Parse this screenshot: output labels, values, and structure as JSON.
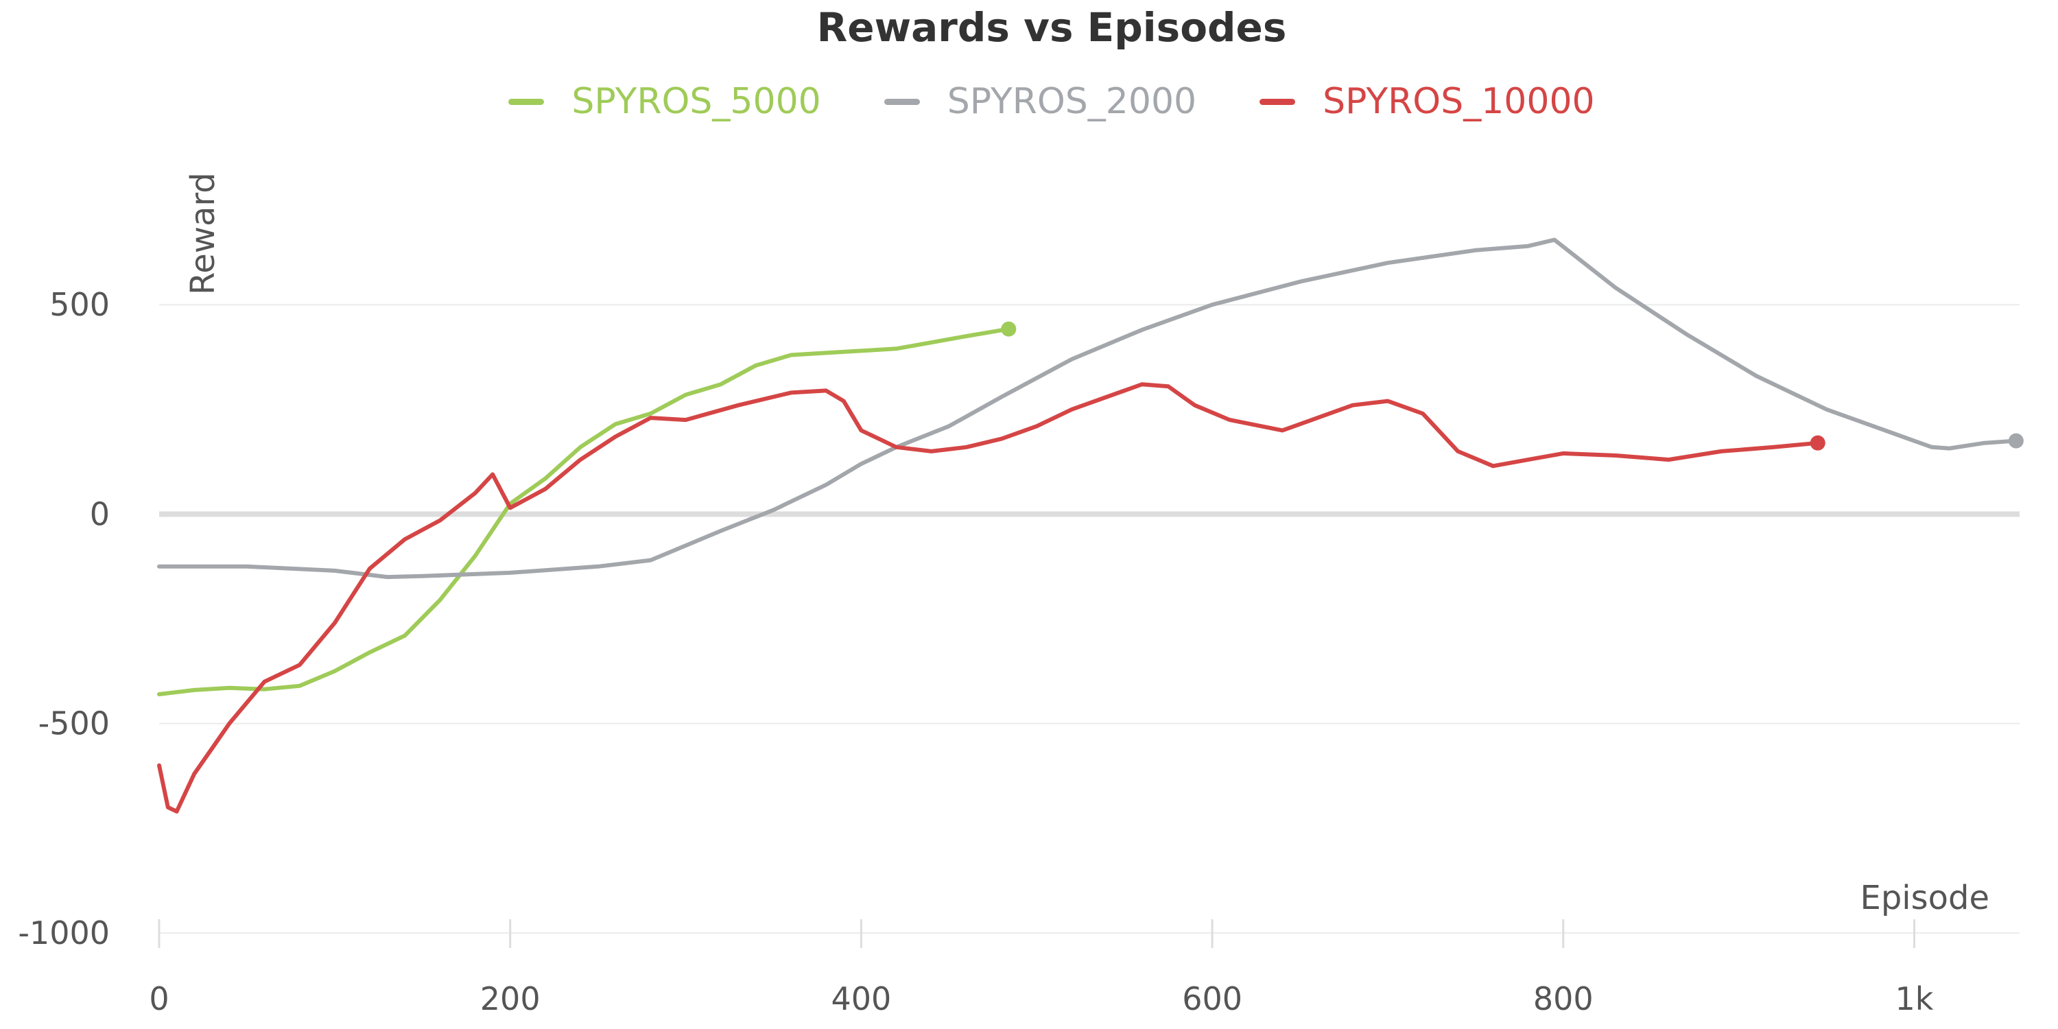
{
  "chart_data": {
    "type": "line",
    "title": "Rewards vs Episodes",
    "xlabel": "Episode",
    "ylabel": "Reward",
    "xlim": [
      0,
      1060
    ],
    "ylim": [
      -1000,
      900
    ],
    "x_ticks": [
      0,
      200,
      400,
      600,
      800,
      1000
    ],
    "x_tick_labels": [
      "0",
      "200",
      "400",
      "600",
      "800",
      "1k"
    ],
    "y_ticks": [
      -1000,
      -500,
      0,
      500
    ],
    "y_tick_labels": [
      "-1000",
      "-500",
      "0",
      "500"
    ],
    "grid": true,
    "legend_position": "top-center",
    "series": [
      {
        "name": "SPYROS_5000",
        "color": "#9fcb58",
        "x": [
          0,
          20,
          40,
          60,
          80,
          100,
          120,
          140,
          160,
          180,
          200,
          220,
          240,
          260,
          280,
          300,
          320,
          340,
          360,
          380,
          400,
          420,
          440,
          460,
          484
        ],
        "values": [
          -430,
          -420,
          -415,
          -418,
          -410,
          -375,
          -330,
          -290,
          -205,
          -100,
          25,
          85,
          160,
          215,
          240,
          285,
          310,
          355,
          380,
          385,
          390,
          395,
          410,
          425,
          442
        ]
      },
      {
        "name": "SPYROS_2000",
        "color": "#a3a7ab",
        "x": [
          0,
          50,
          100,
          130,
          150,
          200,
          250,
          280,
          320,
          350,
          380,
          400,
          420,
          450,
          480,
          520,
          560,
          600,
          650,
          700,
          750,
          780,
          795,
          830,
          870,
          910,
          950,
          990,
          1010,
          1020,
          1040,
          1058
        ],
        "values": [
          -125,
          -125,
          -135,
          -150,
          -148,
          -140,
          -125,
          -110,
          -40,
          10,
          70,
          120,
          160,
          210,
          280,
          370,
          440,
          500,
          555,
          600,
          630,
          640,
          655,
          540,
          430,
          330,
          250,
          190,
          160,
          157,
          170,
          175
        ]
      },
      {
        "name": "SPYROS_10000",
        "color": "#d54545",
        "x": [
          0,
          5,
          10,
          20,
          30,
          40,
          60,
          80,
          100,
          120,
          140,
          160,
          180,
          190,
          200,
          220,
          240,
          260,
          280,
          300,
          330,
          360,
          380,
          390,
          400,
          420,
          440,
          460,
          480,
          500,
          520,
          540,
          560,
          575,
          590,
          610,
          640,
          660,
          680,
          700,
          720,
          740,
          760,
          780,
          800,
          830,
          860,
          890,
          920,
          945
        ],
        "values": [
          -600,
          -700,
          -710,
          -620,
          -560,
          -500,
          -400,
          -360,
          -260,
          -130,
          -60,
          -15,
          50,
          95,
          15,
          60,
          130,
          185,
          230,
          225,
          260,
          290,
          295,
          270,
          200,
          160,
          150,
          160,
          180,
          210,
          250,
          280,
          310,
          305,
          260,
          225,
          200,
          230,
          260,
          270,
          240,
          150,
          115,
          130,
          145,
          140,
          130,
          150,
          160,
          170
        ]
      }
    ],
    "endpoint_markers": true
  }
}
